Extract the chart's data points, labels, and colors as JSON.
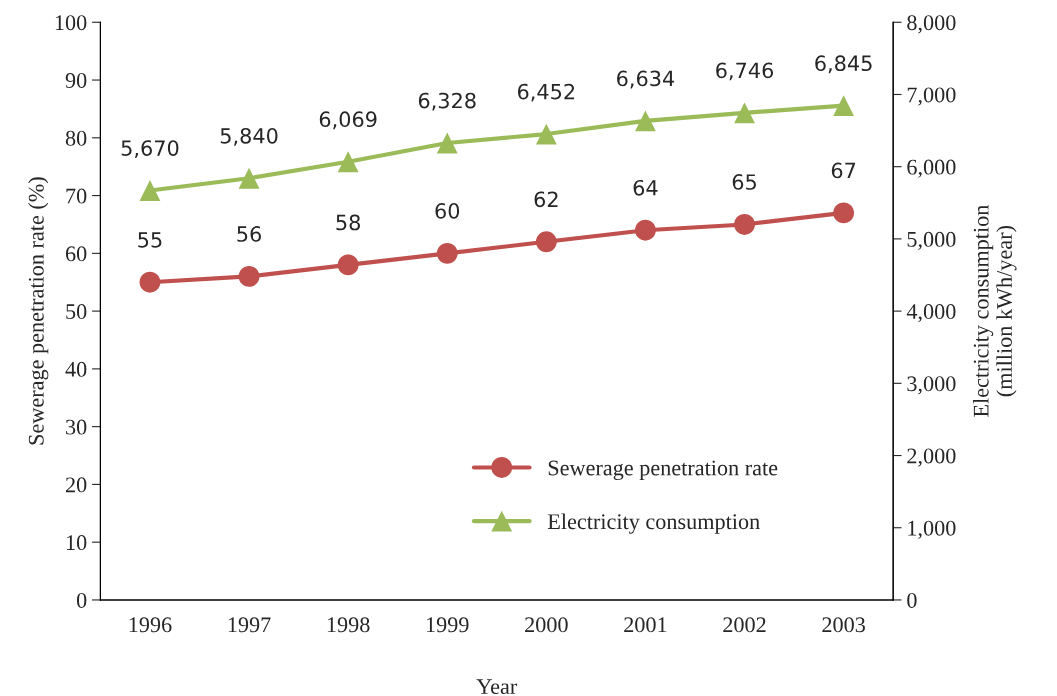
{
  "chart_data": {
    "type": "line",
    "xlabel": "Year",
    "ylabel": "Sewerage penetration rate (%)",
    "y2label": "Electricity consumption\n(million kWh/year)",
    "categories": [
      "1996",
      "1997",
      "1998",
      "1999",
      "2000",
      "2001",
      "2002",
      "2003"
    ],
    "series": [
      {
        "name": "Sewerage penetration rate",
        "color": "#c0504d",
        "marker": "circle",
        "values": [
          55,
          56,
          58,
          60,
          62,
          64,
          65,
          67
        ],
        "value_labels": [
          "55",
          "56",
          "58",
          "60",
          "62",
          "64",
          "65",
          "67"
        ]
      },
      {
        "name": "Electricity consumption",
        "color": "#9bbb59",
        "marker": "triangle",
        "axis": "y2",
        "values": [
          5670,
          5840,
          6069,
          6328,
          6452,
          6634,
          6746,
          6845
        ],
        "value_labels": [
          "5,670",
          "5,840",
          "6,069",
          "6,328",
          "6,452",
          "6,634",
          "6,746",
          "6,845"
        ]
      }
    ],
    "ylim": [
      0,
      100
    ],
    "yticks": [
      0,
      10,
      20,
      30,
      40,
      50,
      60,
      70,
      80,
      90,
      100
    ],
    "y2lim": [
      0,
      8000
    ],
    "y2ticks": [
      {
        "value": 0,
        "label": "0"
      },
      {
        "value": 1000,
        "label": "1,000"
      },
      {
        "value": 2000,
        "label": "2,000"
      },
      {
        "value": 3000,
        "label": "3,000"
      },
      {
        "value": 4000,
        "label": "4,000"
      },
      {
        "value": 5000,
        "label": "5,000"
      },
      {
        "value": 6000,
        "label": "6,000"
      },
      {
        "value": 7000,
        "label": "7,000"
      },
      {
        "value": 8000,
        "label": "8,000"
      }
    ],
    "legend": "bottom right",
    "grid": false,
    "line_style": "solid"
  }
}
